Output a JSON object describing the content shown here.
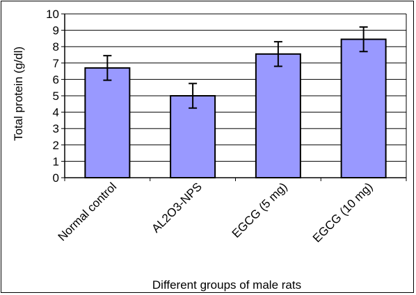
{
  "chart_data": {
    "type": "bar",
    "title": "",
    "xlabel": "Different groups of male  rats",
    "ylabel": "Total protein (g/dl)",
    "categories": [
      "Normal control",
      "AL2O3-NPS",
      "EGCG (5 mg)",
      "EGCG (10 mg)"
    ],
    "values": [
      6.7,
      5.0,
      7.55,
      8.45
    ],
    "errors": [
      0.75,
      0.75,
      0.75,
      0.75
    ],
    "ylim": [
      0,
      10
    ],
    "yticks": [
      "0",
      "1",
      "2",
      "3",
      "4",
      "5",
      "6",
      "7",
      "8",
      "9",
      "10"
    ],
    "grid": true,
    "legend": "none",
    "colors": {
      "bar": "#9999ff",
      "bar_edge": "#000000",
      "grid": "#000000",
      "error": "#000000"
    }
  }
}
